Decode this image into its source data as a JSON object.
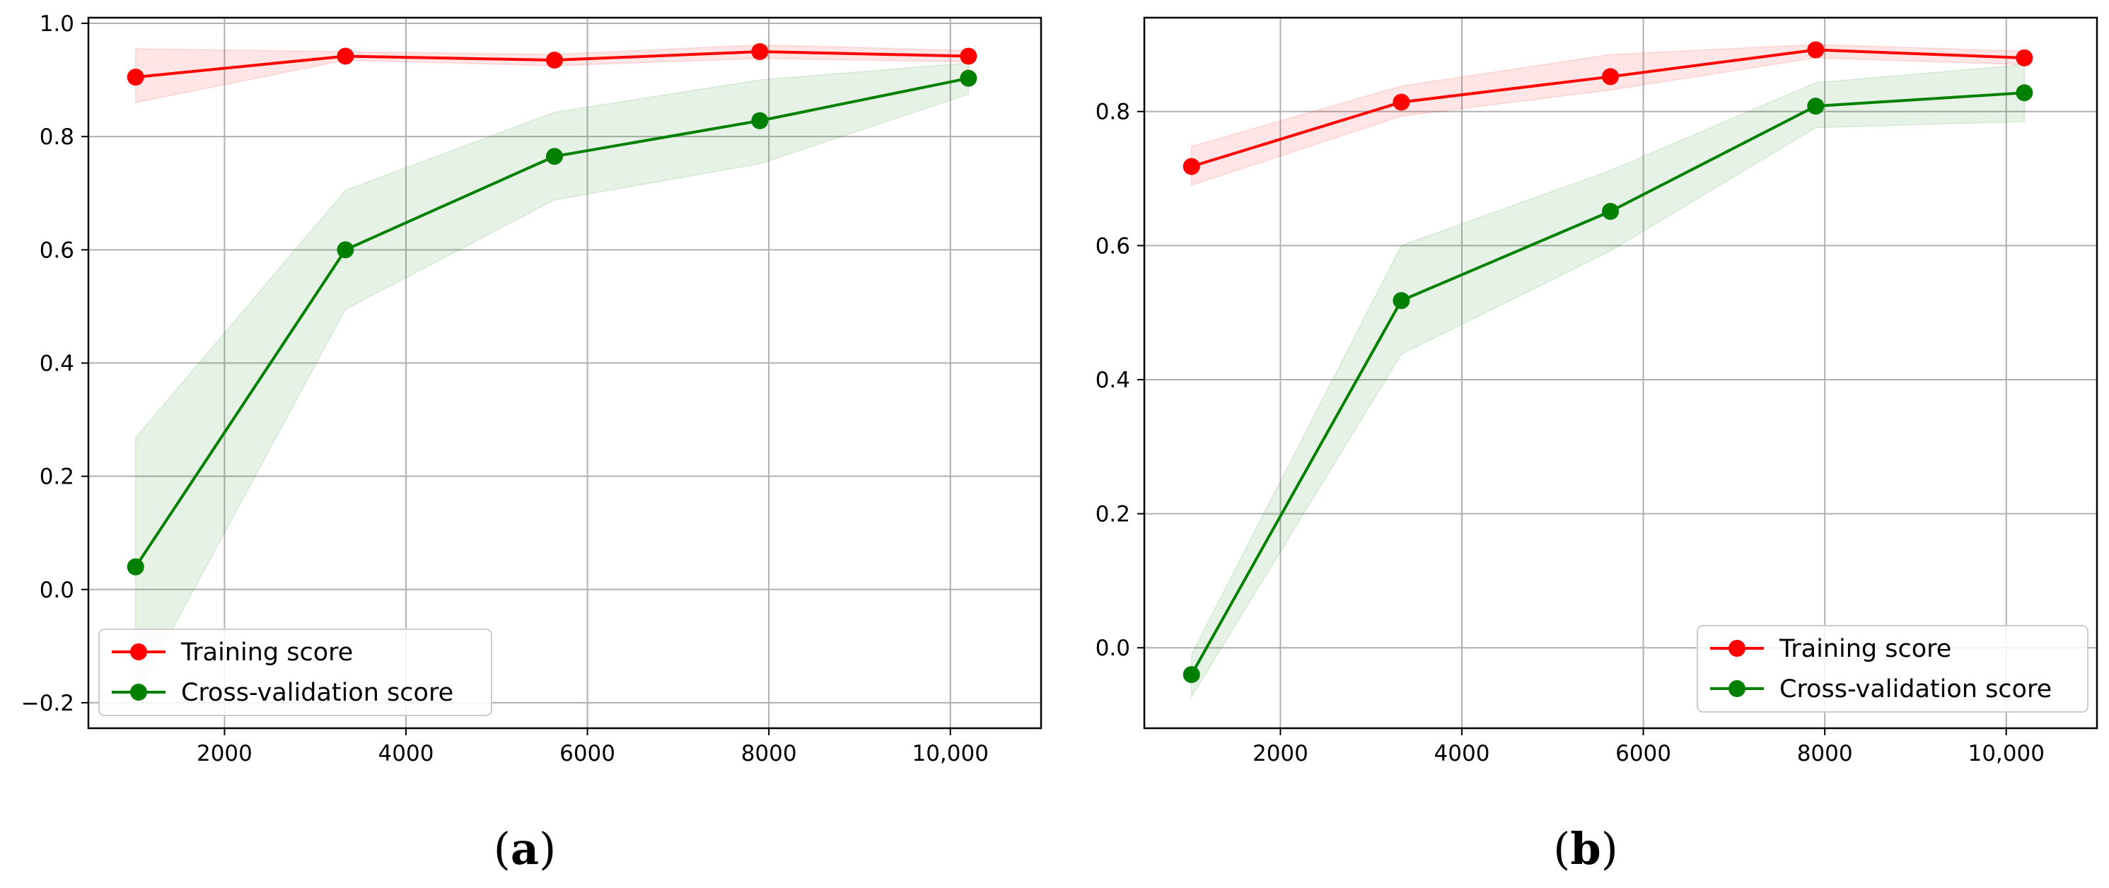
{
  "chart_data": [
    {
      "type": "line",
      "panel_label": "a",
      "x": [
        1020,
        3333,
        5637,
        7900,
        10200
      ],
      "series": [
        {
          "name": "Training score",
          "color": "#ff0000",
          "values": [
            0.905,
            0.942,
            0.935,
            0.95,
            0.942
          ],
          "band_lower": [
            0.86,
            0.935,
            0.925,
            0.938,
            0.932
          ],
          "band_upper": [
            0.955,
            0.95,
            0.945,
            0.962,
            0.952
          ]
        },
        {
          "name": "Cross-validation score",
          "color": "#008000",
          "values": [
            0.04,
            0.6,
            0.765,
            0.828,
            0.903
          ],
          "band_lower": [
            -0.19,
            0.495,
            0.688,
            0.752,
            0.875
          ],
          "band_upper": [
            0.268,
            0.705,
            0.843,
            0.9,
            0.93
          ]
        }
      ],
      "xlim": [
        500,
        11000
      ],
      "ylim": [
        -0.245,
        1.01
      ],
      "xticks": [
        2000,
        4000,
        6000,
        8000,
        10000
      ],
      "xtick_labels": [
        "2000",
        "4000",
        "6000",
        "8000",
        "10,000"
      ],
      "yticks": [
        -0.2,
        0.0,
        0.2,
        0.4,
        0.6,
        0.8,
        1.0
      ],
      "ytick_labels": [
        "−0.2",
        "0.0",
        "0.2",
        "0.4",
        "0.6",
        "0.8",
        "1.0"
      ],
      "grid": true,
      "legend": "lower-left"
    },
    {
      "type": "line",
      "panel_label": "b",
      "x": [
        1020,
        3333,
        5637,
        7900,
        10200
      ],
      "series": [
        {
          "name": "Training score",
          "color": "#ff0000",
          "values": [
            0.718,
            0.814,
            0.852,
            0.892,
            0.88
          ],
          "band_lower": [
            0.69,
            0.793,
            0.832,
            0.88,
            0.87
          ],
          "band_upper": [
            0.748,
            0.838,
            0.885,
            0.9,
            0.89
          ]
        },
        {
          "name": "Cross-validation score",
          "color": "#008000",
          "values": [
            -0.04,
            0.518,
            0.651,
            0.808,
            0.828
          ],
          "band_lower": [
            -0.073,
            0.438,
            0.592,
            0.776,
            0.785
          ],
          "band_upper": [
            -0.01,
            0.6,
            0.712,
            0.843,
            0.87
          ]
        }
      ],
      "xlim": [
        500,
        11000
      ],
      "ylim": [
        -0.12,
        0.94
      ],
      "xticks": [
        2000,
        4000,
        6000,
        8000,
        10000
      ],
      "xtick_labels": [
        "2000",
        "4000",
        "6000",
        "8000",
        "10,000"
      ],
      "yticks": [
        0.0,
        0.2,
        0.4,
        0.6,
        0.8
      ],
      "ytick_labels": [
        "0.0",
        "0.2",
        "0.4",
        "0.6",
        "0.8"
      ],
      "grid": true,
      "legend": "lower-right"
    }
  ]
}
